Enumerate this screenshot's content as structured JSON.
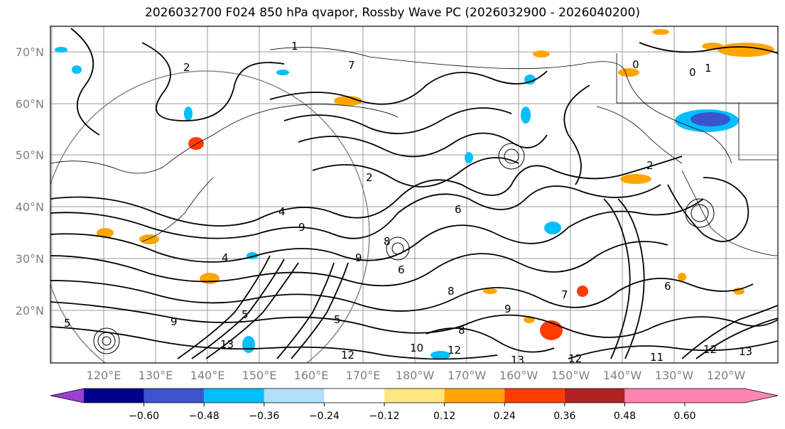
{
  "title": "2026032700 F024 850 hPa qvapor, Rossby Wave PC (2026032900 - 2026040200)",
  "lat_labels": [
    "70°N",
    "60°N",
    "50°N",
    "40°N",
    "30°N",
    "20°N"
  ],
  "lon_labels": [
    "120°E",
    "130°E",
    "140°E",
    "150°E",
    "160°E",
    "170°E",
    "180°W",
    "170°W",
    "160°W",
    "150°W",
    "140°W",
    "130°W",
    "120°W"
  ],
  "contour_labels": [
    "1",
    "2",
    "2",
    "0",
    "0",
    "1",
    "2",
    "4",
    "4",
    "5",
    "6",
    "7",
    "8",
    "8",
    "9",
    "9",
    "9",
    "5",
    "13",
    "12",
    "12",
    "12",
    "10",
    "13",
    "11",
    "12",
    "13",
    "6",
    "5",
    "7",
    "8",
    "6",
    "9"
  ],
  "colorbar": {
    "colors": [
      "#9a3fd0",
      "#00008b",
      "#3a55cc",
      "#00bfff",
      "#b0e0fa",
      "#ffffff",
      "#ffe680",
      "#ffa500",
      "#ff3d00",
      "#b22222",
      "#ff85b0"
    ],
    "tick_labels": [
      "−0.60",
      "−0.48",
      "−0.36",
      "−0.24",
      "−0.12",
      "0.12",
      "0.24",
      "0.36",
      "0.48",
      "0.60"
    ]
  }
}
